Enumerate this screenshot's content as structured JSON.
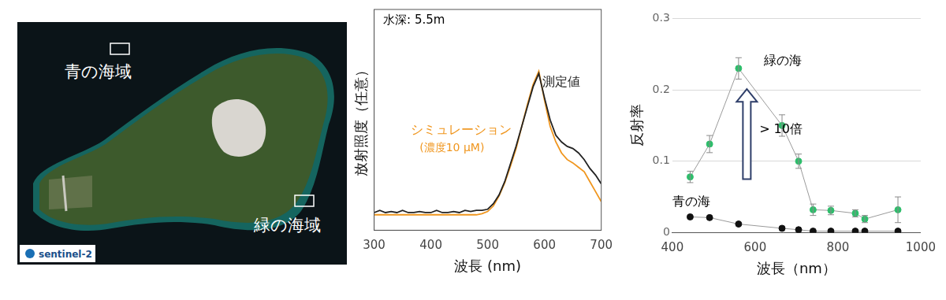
{
  "map": {
    "labels": [
      "青の海域",
      "緑の海域"
    ],
    "credit": "sentinel-2"
  },
  "chart_data": [
    {
      "type": "line",
      "x_label": "波長 (nm)",
      "y_label": "放射照度（任意）",
      "annotations": [
        {
          "text": "水深: 5.5m",
          "color": "#000000"
        },
        {
          "text": "(濃度10 μM)",
          "color": "#f0961e"
        }
      ],
      "x": [
        300,
        310,
        320,
        330,
        340,
        350,
        360,
        370,
        380,
        390,
        400,
        410,
        420,
        430,
        440,
        450,
        460,
        470,
        480,
        490,
        500,
        510,
        520,
        530,
        540,
        550,
        560,
        570,
        580,
        590,
        600,
        610,
        620,
        630,
        640,
        650,
        660,
        670,
        680,
        690,
        700
      ],
      "series": [
        {
          "name": "測定値",
          "color": "#222222",
          "values": [
            0.08,
            0.09,
            0.08,
            0.085,
            0.08,
            0.09,
            0.08,
            0.08,
            0.085,
            0.08,
            0.08,
            0.09,
            0.08,
            0.08,
            0.085,
            0.08,
            0.09,
            0.085,
            0.09,
            0.09,
            0.095,
            0.12,
            0.16,
            0.22,
            0.3,
            0.38,
            0.47,
            0.56,
            0.65,
            0.71,
            0.6,
            0.5,
            0.43,
            0.4,
            0.38,
            0.37,
            0.35,
            0.32,
            0.28,
            0.25,
            0.21
          ]
        },
        {
          "name": "シミュレーション",
          "color": "#f0961e",
          "values": [
            0.07,
            0.07,
            0.07,
            0.07,
            0.07,
            0.07,
            0.07,
            0.07,
            0.07,
            0.07,
            0.07,
            0.07,
            0.07,
            0.07,
            0.07,
            0.07,
            0.07,
            0.07,
            0.07,
            0.075,
            0.085,
            0.11,
            0.155,
            0.215,
            0.29,
            0.37,
            0.47,
            0.57,
            0.66,
            0.72,
            0.59,
            0.47,
            0.4,
            0.35,
            0.32,
            0.305,
            0.285,
            0.265,
            0.22,
            0.175,
            0.13
          ]
        }
      ],
      "xlim": [
        300,
        700
      ],
      "xticks": [
        300,
        400,
        500,
        600,
        700
      ],
      "ylim": [
        0,
        1
      ],
      "yticks": [],
      "tick_labels": "x",
      "grid": false,
      "marker": "none"
    },
    {
      "type": "line",
      "x_label": "波長（nm）",
      "y_label": "反射率",
      "annotations": [
        {
          "text": "> 10倍",
          "color": "#000000"
        }
      ],
      "x": [
        443,
        490,
        560,
        665,
        705,
        740,
        783,
        842,
        865,
        945
      ],
      "series": [
        {
          "name": "緑の海",
          "color": "#2ebd6b",
          "values": [
            0.078,
            0.124,
            0.23,
            0.15,
            0.1,
            0.032,
            0.031,
            0.027,
            0.019,
            0.032
          ],
          "errors": [
            0.008,
            0.012,
            0.015,
            0.015,
            0.01,
            0.008,
            0.006,
            0.005,
            0.005,
            0.018
          ]
        },
        {
          "name": "青の海",
          "color": "#111111",
          "values": [
            0.022,
            0.021,
            0.012,
            0.006,
            0.004,
            0.002,
            0.002,
            0.002,
            0.002,
            0.002
          ]
        }
      ],
      "xlim": [
        400,
        1000
      ],
      "xticks": [
        400,
        600,
        800,
        1000
      ],
      "ylim": [
        0,
        0.3
      ],
      "yticks": [
        0,
        0.1,
        0.2,
        0.3
      ],
      "grid": true,
      "marker": "circle"
    }
  ]
}
